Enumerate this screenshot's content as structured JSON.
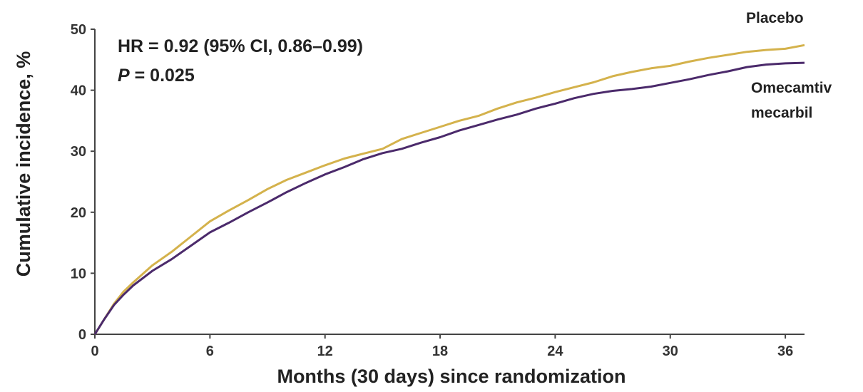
{
  "chart_data": {
    "type": "line",
    "title": "",
    "xlabel": "Months (30 days) since randomization",
    "ylabel": "Cumulative incidence, %",
    "xlim": [
      0,
      37
    ],
    "ylim": [
      0,
      50
    ],
    "xticks": [
      0,
      6,
      12,
      18,
      24,
      30,
      36
    ],
    "yticks": [
      0,
      10,
      20,
      30,
      40,
      50
    ],
    "grid": false,
    "annotation": {
      "hr_text": "HR = 0.92 (95% CI, 0.86–0.99)",
      "p_label": "P",
      "p_value": " = 0.025"
    },
    "series": [
      {
        "name": "Placebo",
        "color": "#d4b24c",
        "x": [
          0,
          0.5,
          1,
          1.5,
          2,
          3,
          4,
          5,
          6,
          7,
          8,
          9,
          10,
          11,
          12,
          13,
          14,
          15,
          16,
          17,
          18,
          19,
          20,
          21,
          22,
          23,
          24,
          25,
          26,
          27,
          28,
          29,
          30,
          31,
          32,
          33,
          34,
          35,
          36,
          37
        ],
        "y": [
          0,
          2.5,
          5,
          7,
          8.5,
          11.3,
          13.5,
          16,
          18.5,
          20.3,
          22,
          23.8,
          25.3,
          26.5,
          27.7,
          28.8,
          29.6,
          30.4,
          32,
          33,
          34,
          35,
          35.8,
          37,
          38,
          38.8,
          39.7,
          40.5,
          41.3,
          42.3,
          43,
          43.6,
          44,
          44.7,
          45.3,
          45.8,
          46.3,
          46.6,
          46.8,
          47.4
        ]
      },
      {
        "name": "Omecamtiv mecarbil",
        "name_lines": [
          "Omecamtiv",
          "mecarbil"
        ],
        "color": "#4b2a6b",
        "x": [
          0,
          0.5,
          1,
          1.5,
          2,
          3,
          4,
          5,
          6,
          7,
          8,
          9,
          10,
          11,
          12,
          13,
          14,
          15,
          16,
          17,
          18,
          19,
          20,
          21,
          22,
          23,
          24,
          25,
          26,
          27,
          28,
          29,
          30,
          31,
          32,
          33,
          34,
          35,
          36,
          37
        ],
        "y": [
          0,
          2.5,
          4.8,
          6.5,
          8,
          10.4,
          12.3,
          14.5,
          16.7,
          18.3,
          20,
          21.6,
          23.3,
          24.8,
          26.2,
          27.4,
          28.7,
          29.7,
          30.4,
          31.4,
          32.3,
          33.4,
          34.3,
          35.2,
          36,
          37,
          37.8,
          38.7,
          39.4,
          39.9,
          40.2,
          40.6,
          41.2,
          41.8,
          42.5,
          43.1,
          43.8,
          44.2,
          44.4,
          44.5
        ]
      }
    ]
  }
}
